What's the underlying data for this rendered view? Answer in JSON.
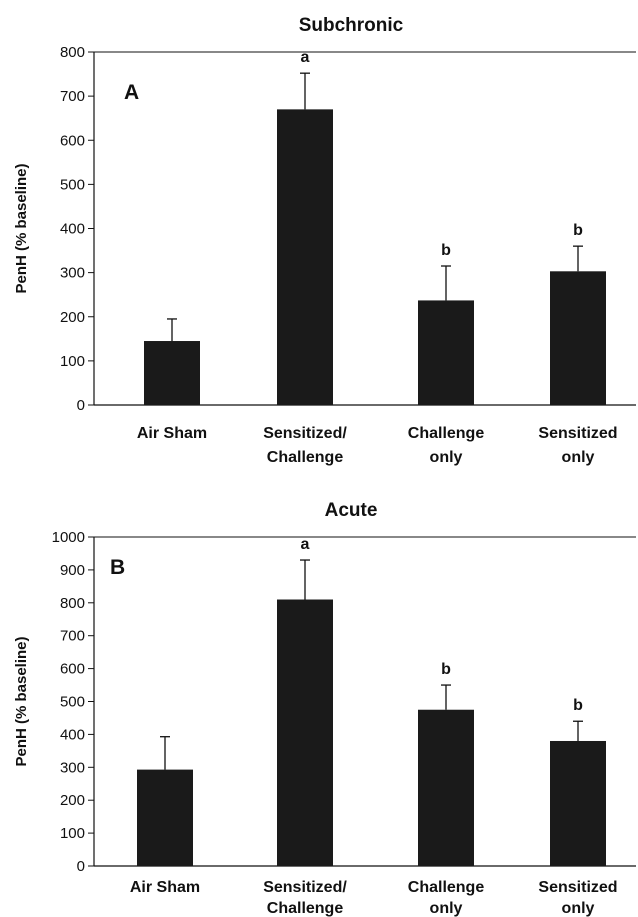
{
  "chart_data": [
    {
      "type": "bar",
      "title": "Subchronic",
      "panel": "A",
      "ylabel": "PenH (% baseline)",
      "ylim": [
        0,
        800
      ],
      "yticks": [
        0,
        100,
        200,
        300,
        400,
        500,
        600,
        700,
        800
      ],
      "categories": [
        [
          "Air Sham"
        ],
        [
          "Sensitized/",
          "Challenge"
        ],
        [
          "Challenge",
          "only"
        ],
        [
          "Sensitized",
          "only"
        ]
      ],
      "values": [
        145,
        670,
        237,
        303
      ],
      "errors": [
        50,
        82,
        78,
        57
      ],
      "annotations": [
        "",
        "a",
        "b",
        "b"
      ],
      "bar_color": "#1a1a1a"
    },
    {
      "type": "bar",
      "title": "Acute",
      "panel": "B",
      "ylabel": "PenH (% baseline)",
      "ylim": [
        0,
        1000
      ],
      "yticks": [
        0,
        100,
        200,
        300,
        400,
        500,
        600,
        700,
        800,
        900,
        1000
      ],
      "categories": [
        [
          "Air Sham"
        ],
        [
          "Sensitized/",
          "Challenge"
        ],
        [
          "Challenge",
          "only"
        ],
        [
          "Sensitized",
          "only"
        ]
      ],
      "values": [
        293,
        810,
        475,
        380
      ],
      "errors": [
        100,
        120,
        75,
        60
      ],
      "annotations": [
        "",
        "a",
        "b",
        "b"
      ],
      "bar_color": "#1a1a1a"
    }
  ]
}
